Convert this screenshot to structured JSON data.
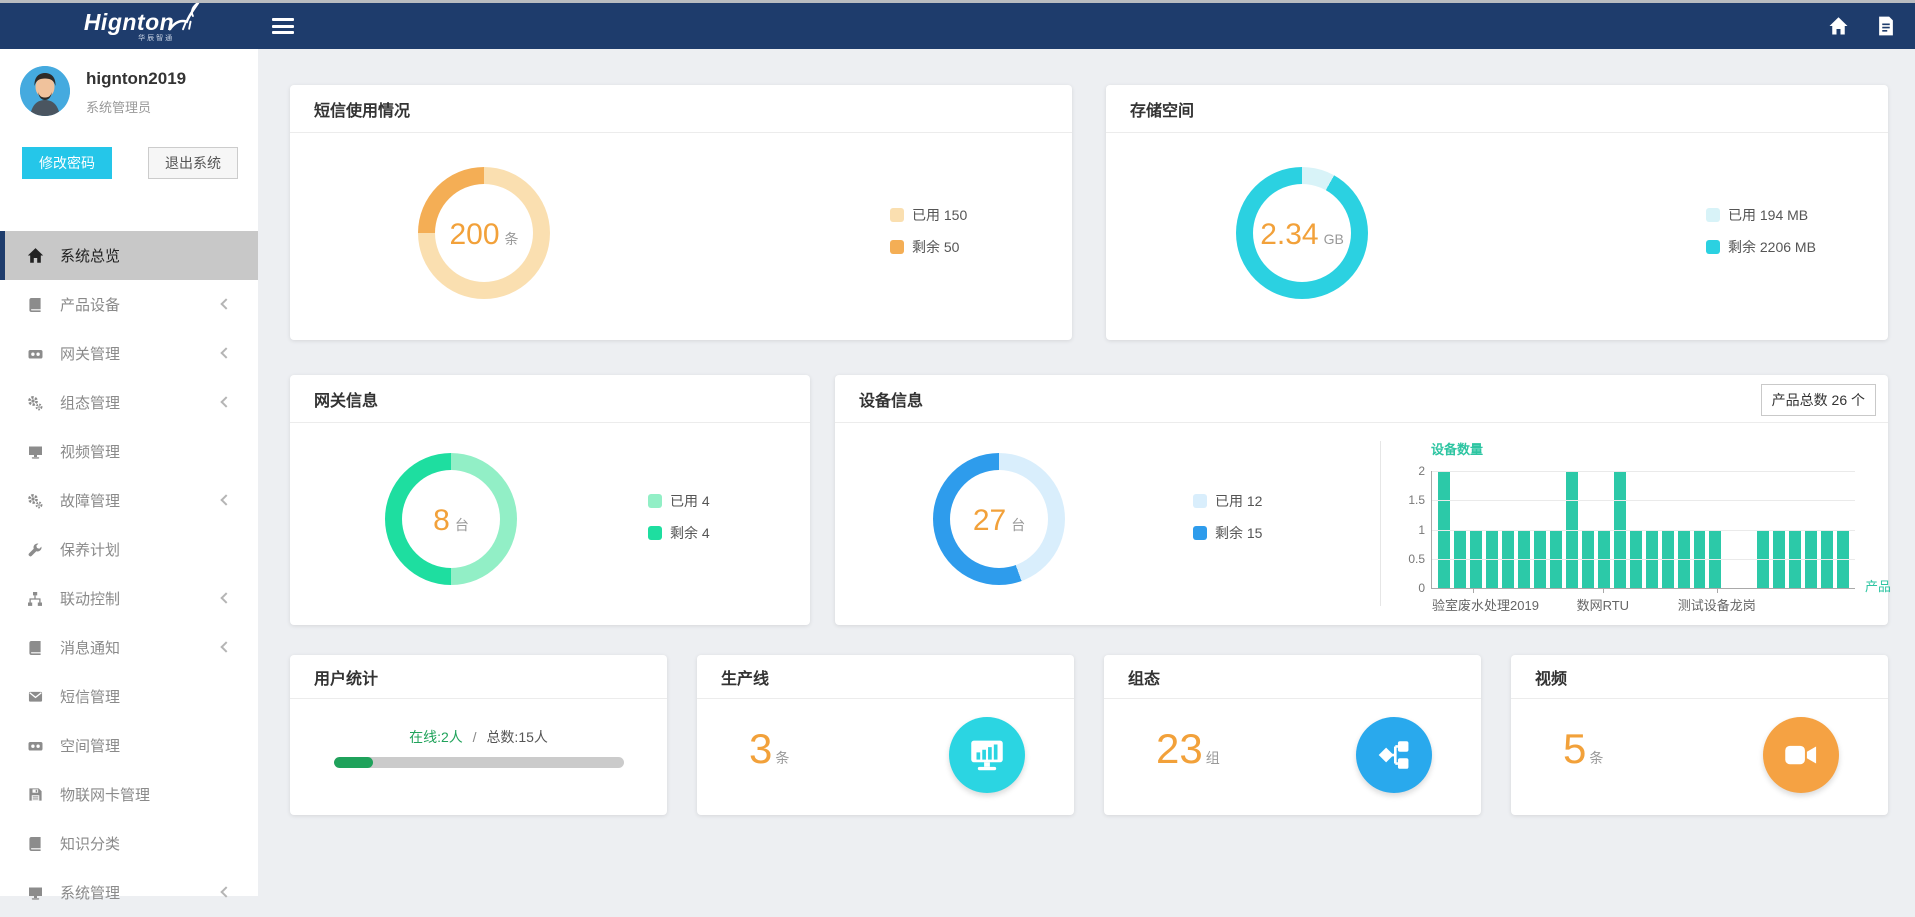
{
  "brand": {
    "name": "Hignton",
    "subtitle": "华辰智通"
  },
  "topbar": {
    "icons": [
      "menu",
      "home",
      "document"
    ]
  },
  "sidebar": {
    "user": {
      "name": "hignton2019",
      "role": "系统管理员"
    },
    "buttons": {
      "change_password": "修改密码",
      "logout": "退出系统"
    },
    "menu": [
      {
        "key": "overview",
        "label": "系统总览",
        "icon": "home",
        "active": true,
        "expandable": false
      },
      {
        "key": "products",
        "label": "产品设备",
        "icon": "book",
        "active": false,
        "expandable": true
      },
      {
        "key": "gateway",
        "label": "网关管理",
        "icon": "camera",
        "active": false,
        "expandable": true
      },
      {
        "key": "scada",
        "label": "组态管理",
        "icon": "gears",
        "active": false,
        "expandable": true
      },
      {
        "key": "video",
        "label": "视频管理",
        "icon": "monitor",
        "active": false,
        "expandable": false
      },
      {
        "key": "fault",
        "label": "故障管理",
        "icon": "gears",
        "active": false,
        "expandable": true
      },
      {
        "key": "maintenance",
        "label": "保养计划",
        "icon": "wrench",
        "active": false,
        "expandable": false
      },
      {
        "key": "linkage",
        "label": "联动控制",
        "icon": "sitemap",
        "active": false,
        "expandable": true
      },
      {
        "key": "notification",
        "label": "消息通知",
        "icon": "book",
        "active": false,
        "expandable": true
      },
      {
        "key": "sms",
        "label": "短信管理",
        "icon": "envelope",
        "active": false,
        "expandable": false
      },
      {
        "key": "space",
        "label": "空间管理",
        "icon": "camera",
        "active": false,
        "expandable": false
      },
      {
        "key": "iot-card",
        "label": "物联网卡管理",
        "icon": "floppy",
        "active": false,
        "expandable": false
      },
      {
        "key": "knowledge",
        "label": "知识分类",
        "icon": "book",
        "active": false,
        "expandable": false
      },
      {
        "key": "system",
        "label": "系统管理",
        "icon": "monitor",
        "active": false,
        "expandable": true
      }
    ]
  },
  "cards": {
    "sms": {
      "title": "短信使用情况",
      "value": "200",
      "unit": "条",
      "legend": [
        {
          "text": "已用 150",
          "color": "#fadfb0"
        },
        {
          "text": "剩余 50",
          "color": "#f4ae55"
        }
      ]
    },
    "storage": {
      "title": "存储空间",
      "value": "2.34",
      "unit": "GB",
      "legend": [
        {
          "text": "已用 194 MB",
          "color": "#d8f3f8"
        },
        {
          "text": "剩余 2206 MB",
          "color": "#2bd1e1"
        }
      ]
    },
    "gateway": {
      "title": "网关信息",
      "value": "8",
      "unit": "台",
      "legend": [
        {
          "text": "已用 4",
          "color": "#92efc6"
        },
        {
          "text": "剩余 4",
          "color": "#1edea0"
        }
      ]
    },
    "device": {
      "title": "设备信息",
      "badge": "产品总数 26 个",
      "value": "27",
      "unit": "台",
      "legend": [
        {
          "text": "已用 12",
          "color": "#d9eefc"
        },
        {
          "text": "剩余 15",
          "color": "#2e9cec"
        }
      ]
    },
    "users": {
      "title": "用户统计",
      "online_text": "在线:2人",
      "separator": "/",
      "total_text": "总数:15人",
      "progress_pct": 13.3,
      "fill_color": "#1fa25b"
    },
    "production": {
      "title": "生产线",
      "value": "3",
      "unit": "条",
      "icon_color": "#2bd5e2"
    },
    "scada": {
      "title": "组态",
      "value": "23",
      "unit": "组",
      "icon_color": "#29a9ed"
    },
    "video": {
      "title": "视频",
      "value": "5",
      "unit": "条",
      "icon_color": "#f5a243"
    }
  },
  "chart_data": [
    {
      "type": "pie",
      "name": "sms",
      "title": "短信使用情况",
      "center_value": "200",
      "center_unit": "条",
      "segments": [
        {
          "label": "已用",
          "value": 150,
          "color": "#fadfb0"
        },
        {
          "label": "剩余",
          "value": 50,
          "color": "#f4ae55"
        }
      ]
    },
    {
      "type": "pie",
      "name": "storage",
      "title": "存储空间",
      "center_value": "2.34",
      "center_unit": "GB",
      "segments": [
        {
          "label": "已用",
          "value": 194,
          "unit": "MB",
          "color": "#d8f3f8"
        },
        {
          "label": "剩余",
          "value": 2206,
          "unit": "MB",
          "color": "#2bd1e1"
        }
      ]
    },
    {
      "type": "pie",
      "name": "gateway",
      "title": "网关信息",
      "center_value": "8",
      "center_unit": "台",
      "segments": [
        {
          "label": "已用",
          "value": 4,
          "color": "#92efc6"
        },
        {
          "label": "剩余",
          "value": 4,
          "color": "#1edea0"
        }
      ]
    },
    {
      "type": "pie",
      "name": "device",
      "title": "设备信息",
      "center_value": "27",
      "center_unit": "台",
      "segments": [
        {
          "label": "已用",
          "value": 12,
          "color": "#d9eefc"
        },
        {
          "label": "剩余",
          "value": 15,
          "color": "#2e9cec"
        }
      ]
    },
    {
      "type": "bar",
      "name": "device-count",
      "title": "设备数量",
      "xlabel": "产品",
      "ylabel": "设备数量",
      "ylim": [
        0,
        2
      ],
      "yticks": [
        0,
        0.5,
        1,
        1.5,
        2
      ],
      "grid": true,
      "bar_color": "#2cc9a8",
      "values": [
        2,
        1,
        1,
        1,
        1,
        1,
        1,
        1,
        2,
        1,
        1,
        2,
        1,
        1,
        1,
        1,
        1,
        1,
        0,
        0,
        1,
        1,
        1,
        1,
        1,
        1
      ],
      "xticks": [
        {
          "label": "验室废水处理2019",
          "index": 2,
          "align": "left"
        },
        {
          "label": "数网RTU",
          "index": 10,
          "align": "center"
        },
        {
          "label": "测试设备龙岗",
          "index": 17,
          "align": "center"
        }
      ]
    }
  ]
}
